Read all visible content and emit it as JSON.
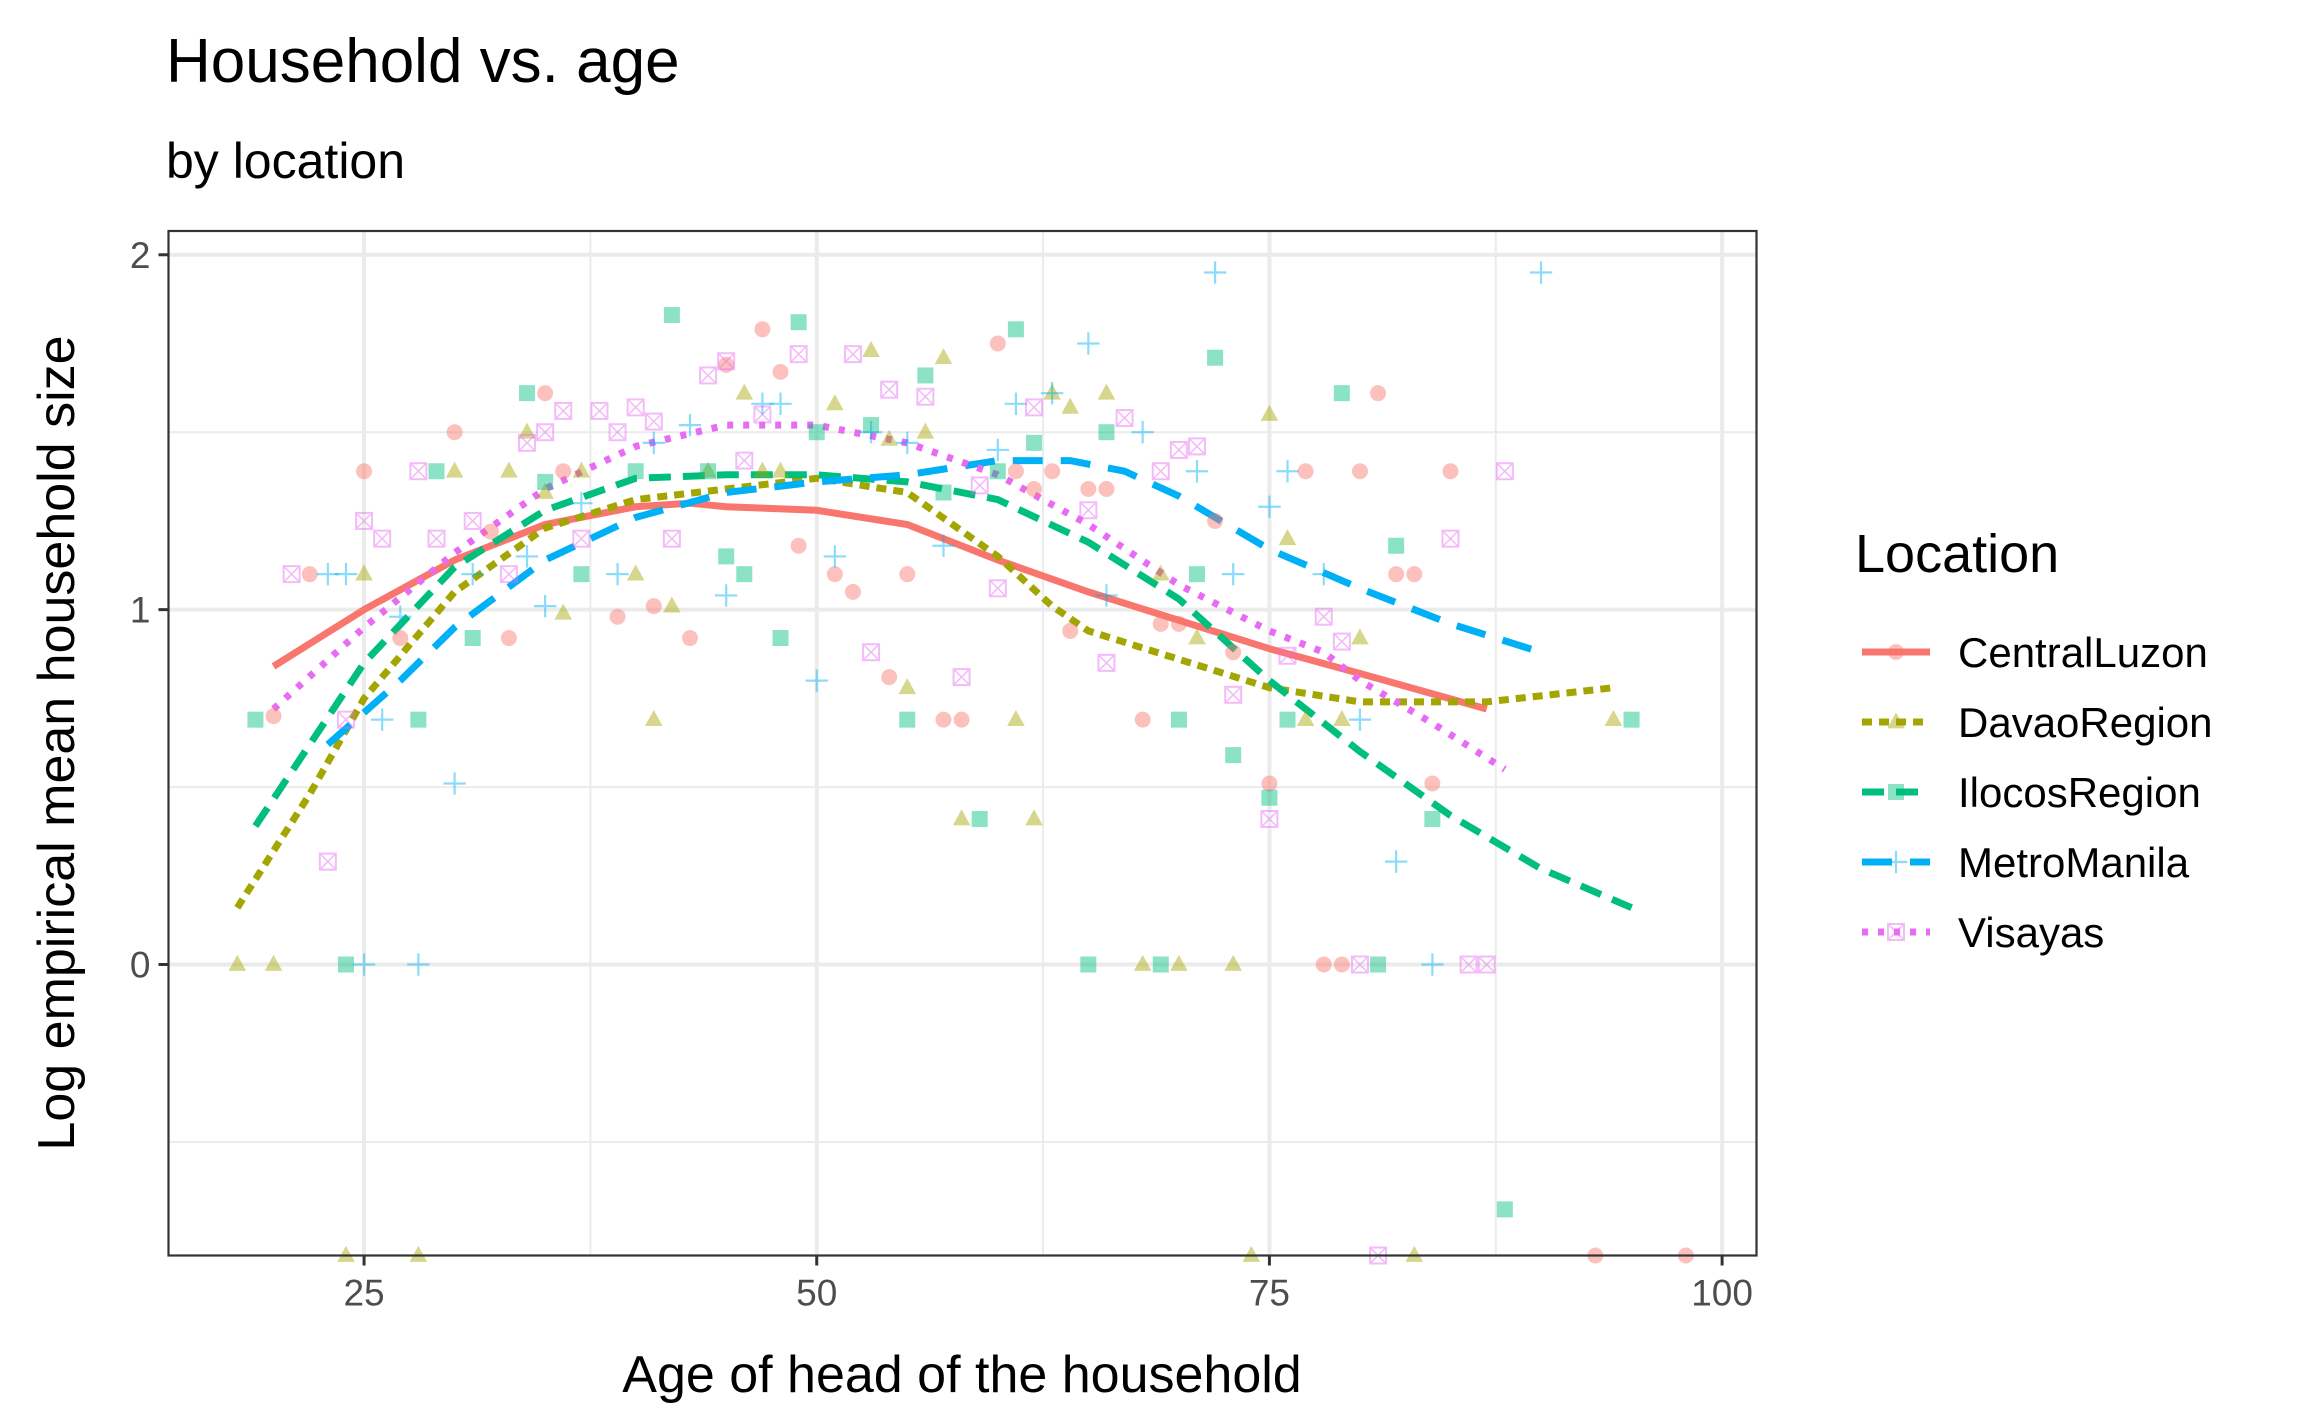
{
  "chart_data": {
    "type": "scatter",
    "title": "Household vs. age",
    "subtitle": "by location",
    "xlabel": "Age of head of the household",
    "ylabel": "Log empirical mean household size",
    "xlim": [
      14.2,
      101.9
    ],
    "ylim": [
      -0.82,
      2.067
    ],
    "x_ticks": [
      25,
      50,
      75,
      100
    ],
    "x_tick_labels": [
      "25",
      "50",
      "75",
      "100"
    ],
    "y_ticks": [
      0,
      1,
      2
    ],
    "y_tick_labels": [
      "0",
      "1",
      "2"
    ],
    "grid": true,
    "legend": {
      "title": "Location",
      "placement": "right"
    },
    "series": [
      {
        "name": "CentralLuzon",
        "color": "#F8766D",
        "marker": "circle",
        "line": "solid",
        "points": [
          [
            20,
            0.7
          ],
          [
            22,
            1.1
          ],
          [
            25,
            1.39
          ],
          [
            27,
            0.92
          ],
          [
            30,
            1.5
          ],
          [
            32,
            1.22
          ],
          [
            33,
            0.92
          ],
          [
            35,
            1.61
          ],
          [
            36,
            1.39
          ],
          [
            39,
            0.98
          ],
          [
            41,
            1.01
          ],
          [
            43,
            0.92
          ],
          [
            45,
            1.69
          ],
          [
            47,
            1.79
          ],
          [
            48,
            1.67
          ],
          [
            49,
            1.18
          ],
          [
            51,
            1.1
          ],
          [
            52,
            1.05
          ],
          [
            54,
            0.81
          ],
          [
            55,
            1.1
          ],
          [
            57,
            0.69
          ],
          [
            58,
            0.69
          ],
          [
            60,
            1.75
          ],
          [
            61,
            1.39
          ],
          [
            62,
            1.34
          ],
          [
            63,
            1.39
          ],
          [
            64,
            0.94
          ],
          [
            65,
            1.34
          ],
          [
            66,
            1.34
          ],
          [
            68,
            0.69
          ],
          [
            69,
            0.96
          ],
          [
            70,
            0.96
          ],
          [
            72,
            1.25
          ],
          [
            73,
            0.88
          ],
          [
            75,
            0.51
          ],
          [
            77,
            1.39
          ],
          [
            78,
            0
          ],
          [
            79,
            0
          ],
          [
            80,
            1.39
          ],
          [
            81,
            1.61
          ],
          [
            82,
            1.1
          ],
          [
            83,
            1.1
          ],
          [
            84,
            0.51
          ],
          [
            85,
            1.39
          ],
          [
            93,
            -0.82
          ],
          [
            98,
            -0.82
          ]
        ],
        "smooth": [
          [
            20,
            0.84
          ],
          [
            25,
            1.0
          ],
          [
            30,
            1.14
          ],
          [
            35,
            1.24
          ],
          [
            40,
            1.29
          ],
          [
            43,
            1.3
          ],
          [
            45,
            1.29
          ],
          [
            50,
            1.28
          ],
          [
            55,
            1.24
          ],
          [
            60,
            1.14
          ],
          [
            65,
            1.05
          ],
          [
            70,
            0.97
          ],
          [
            75,
            0.89
          ],
          [
            80,
            0.82
          ],
          [
            87,
            0.72
          ]
        ]
      },
      {
        "name": "DavaoRegion",
        "color": "#A3A500",
        "marker": "triangle",
        "line": "dotted",
        "points": [
          [
            18,
            0
          ],
          [
            20,
            0
          ],
          [
            24,
            -0.82
          ],
          [
            25,
            1.1
          ],
          [
            28,
            -0.82
          ],
          [
            30,
            1.39
          ],
          [
            33,
            1.39
          ],
          [
            34,
            1.5
          ],
          [
            35,
            1.33
          ],
          [
            36,
            0.99
          ],
          [
            37,
            1.39
          ],
          [
            40,
            1.1
          ],
          [
            41,
            0.69
          ],
          [
            42,
            1.01
          ],
          [
            44,
            1.39
          ],
          [
            46,
            1.61
          ],
          [
            47,
            1.39
          ],
          [
            48,
            1.39
          ],
          [
            51,
            1.58
          ],
          [
            53,
            1.73
          ],
          [
            54,
            1.48
          ],
          [
            55,
            0.78
          ],
          [
            56,
            1.5
          ],
          [
            57,
            1.71
          ],
          [
            58,
            0.41
          ],
          [
            61,
            0.69
          ],
          [
            62,
            0.41
          ],
          [
            63,
            1.61
          ],
          [
            64,
            1.57
          ],
          [
            66,
            1.61
          ],
          [
            68,
            0
          ],
          [
            69,
            1.1
          ],
          [
            70,
            0
          ],
          [
            71,
            0.92
          ],
          [
            73,
            0
          ],
          [
            74,
            -0.82
          ],
          [
            75,
            1.55
          ],
          [
            76,
            1.2
          ],
          [
            77,
            0.69
          ],
          [
            79,
            0.69
          ],
          [
            80,
            0.92
          ],
          [
            83,
            -0.82
          ],
          [
            94,
            0.69
          ]
        ],
        "smooth": [
          [
            18,
            0.16
          ],
          [
            22,
            0.48
          ],
          [
            25,
            0.75
          ],
          [
            30,
            1.05
          ],
          [
            35,
            1.23
          ],
          [
            40,
            1.31
          ],
          [
            45,
            1.34
          ],
          [
            50,
            1.37
          ],
          [
            55,
            1.33
          ],
          [
            60,
            1.15
          ],
          [
            63,
            1.01
          ],
          [
            65,
            0.94
          ],
          [
            70,
            0.86
          ],
          [
            75,
            0.78
          ],
          [
            80,
            0.74
          ],
          [
            87,
            0.74
          ],
          [
            94,
            0.78
          ]
        ]
      },
      {
        "name": "IlocosRegion",
        "color": "#00BF7D",
        "marker": "square",
        "line": "dashed",
        "points": [
          [
            19,
            0.69
          ],
          [
            24,
            0
          ],
          [
            28,
            0.69
          ],
          [
            29,
            1.39
          ],
          [
            31,
            0.92
          ],
          [
            34,
            1.61
          ],
          [
            35,
            1.36
          ],
          [
            37,
            1.1
          ],
          [
            40,
            1.39
          ],
          [
            42,
            1.83
          ],
          [
            44,
            1.39
          ],
          [
            45,
            1.15
          ],
          [
            46,
            1.1
          ],
          [
            48,
            0.92
          ],
          [
            49,
            1.81
          ],
          [
            50,
            1.5
          ],
          [
            53,
            1.52
          ],
          [
            55,
            0.69
          ],
          [
            56,
            1.66
          ],
          [
            57,
            1.33
          ],
          [
            59,
            0.41
          ],
          [
            60,
            1.39
          ],
          [
            61,
            1.79
          ],
          [
            62,
            1.47
          ],
          [
            65,
            0
          ],
          [
            66,
            1.5
          ],
          [
            69,
            0
          ],
          [
            70,
            0.69
          ],
          [
            71,
            1.1
          ],
          [
            72,
            1.71
          ],
          [
            73,
            0.59
          ],
          [
            75,
            0.47
          ],
          [
            76,
            0.69
          ],
          [
            79,
            1.61
          ],
          [
            81,
            0
          ],
          [
            82,
            1.18
          ],
          [
            84,
            0.41
          ],
          [
            88,
            -0.69
          ],
          [
            95,
            0.69
          ]
        ],
        "smooth": [
          [
            19,
            0.39
          ],
          [
            25,
            0.85
          ],
          [
            30,
            1.12
          ],
          [
            35,
            1.28
          ],
          [
            40,
            1.37
          ],
          [
            45,
            1.38
          ],
          [
            50,
            1.38
          ],
          [
            55,
            1.36
          ],
          [
            60,
            1.31
          ],
          [
            65,
            1.19
          ],
          [
            70,
            1.03
          ],
          [
            75,
            0.8
          ],
          [
            80,
            0.6
          ],
          [
            85,
            0.42
          ],
          [
            90,
            0.27
          ],
          [
            95,
            0.16
          ]
        ]
      },
      {
        "name": "MetroManila",
        "color": "#00B0F6",
        "marker": "plus",
        "line": "longdash",
        "points": [
          [
            23,
            1.1
          ],
          [
            24,
            1.1
          ],
          [
            25,
            0
          ],
          [
            26,
            0.69
          ],
          [
            27,
            0.98
          ],
          [
            28,
            0
          ],
          [
            30,
            0.51
          ],
          [
            31,
            1.1
          ],
          [
            34,
            1.15
          ],
          [
            35,
            1.01
          ],
          [
            37,
            1.3
          ],
          [
            39,
            1.1
          ],
          [
            41,
            1.47
          ],
          [
            43,
            1.52
          ],
          [
            45,
            1.04
          ],
          [
            47,
            1.58
          ],
          [
            48,
            1.58
          ],
          [
            50,
            0.8
          ],
          [
            51,
            1.15
          ],
          [
            53,
            1.5
          ],
          [
            55,
            1.47
          ],
          [
            57,
            1.18
          ],
          [
            60,
            1.45
          ],
          [
            61,
            1.58
          ],
          [
            63,
            1.61
          ],
          [
            65,
            1.75
          ],
          [
            66,
            1.04
          ],
          [
            68,
            1.5
          ],
          [
            71,
            1.39
          ],
          [
            72,
            1.95
          ],
          [
            73,
            1.1
          ],
          [
            75,
            1.29
          ],
          [
            76,
            1.39
          ],
          [
            78,
            1.1
          ],
          [
            80,
            0.69
          ],
          [
            82,
            0.29
          ],
          [
            84,
            0
          ],
          [
            90,
            1.95
          ]
        ],
        "smooth": [
          [
            23,
            0.62
          ],
          [
            27,
            0.8
          ],
          [
            30,
            0.95
          ],
          [
            35,
            1.14
          ],
          [
            40,
            1.26
          ],
          [
            45,
            1.33
          ],
          [
            50,
            1.36
          ],
          [
            55,
            1.38
          ],
          [
            60,
            1.42
          ],
          [
            64,
            1.42
          ],
          [
            67,
            1.39
          ],
          [
            70,
            1.32
          ],
          [
            75,
            1.17
          ],
          [
            80,
            1.06
          ],
          [
            85,
            0.96
          ],
          [
            90,
            0.88
          ]
        ]
      },
      {
        "name": "Visayas",
        "color": "#E76BF3",
        "marker": "boxed-x",
        "line": "dotted-fine",
        "points": [
          [
            21,
            1.1
          ],
          [
            23,
            0.29
          ],
          [
            24,
            0.69
          ],
          [
            25,
            1.25
          ],
          [
            26,
            1.2
          ],
          [
            28,
            1.39
          ],
          [
            29,
            1.2
          ],
          [
            31,
            1.25
          ],
          [
            33,
            1.1
          ],
          [
            34,
            1.47
          ],
          [
            35,
            1.5
          ],
          [
            36,
            1.56
          ],
          [
            37,
            1.2
          ],
          [
            38,
            1.56
          ],
          [
            39,
            1.5
          ],
          [
            40,
            1.57
          ],
          [
            41,
            1.53
          ],
          [
            42,
            1.2
          ],
          [
            44,
            1.66
          ],
          [
            45,
            1.7
          ],
          [
            46,
            1.42
          ],
          [
            47,
            1.55
          ],
          [
            49,
            1.72
          ],
          [
            52,
            1.72
          ],
          [
            53,
            0.88
          ],
          [
            54,
            1.62
          ],
          [
            56,
            1.6
          ],
          [
            58,
            0.81
          ],
          [
            59,
            1.35
          ],
          [
            60,
            1.06
          ],
          [
            62,
            1.57
          ],
          [
            65,
            1.28
          ],
          [
            66,
            0.85
          ],
          [
            67,
            1.54
          ],
          [
            69,
            1.39
          ],
          [
            70,
            1.45
          ],
          [
            71,
            1.46
          ],
          [
            73,
            0.76
          ],
          [
            75,
            0.41
          ],
          [
            76,
            0.87
          ],
          [
            78,
            0.98
          ],
          [
            79,
            0.91
          ],
          [
            80,
            0
          ],
          [
            81,
            -0.82
          ],
          [
            85,
            1.2
          ],
          [
            86,
            0
          ],
          [
            87,
            0
          ],
          [
            88,
            1.39
          ]
        ],
        "smooth": [
          [
            20,
            0.72
          ],
          [
            25,
            0.95
          ],
          [
            30,
            1.16
          ],
          [
            35,
            1.34
          ],
          [
            40,
            1.46
          ],
          [
            45,
            1.52
          ],
          [
            50,
            1.52
          ],
          [
            55,
            1.47
          ],
          [
            60,
            1.38
          ],
          [
            65,
            1.24
          ],
          [
            70,
            1.07
          ],
          [
            75,
            0.94
          ],
          [
            78,
            0.88
          ],
          [
            80,
            0.8
          ],
          [
            84,
            0.68
          ],
          [
            88,
            0.55
          ]
        ]
      }
    ]
  }
}
